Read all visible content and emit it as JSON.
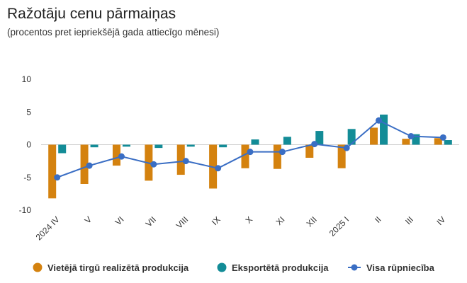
{
  "chart_data": {
    "type": "bar",
    "title": "Ražotāju cenu pārmaiņas",
    "subtitle": "(procentos pret iepriekšējā gada attiecīgo mēnesi)",
    "categories": [
      "2024 IV",
      "V",
      "VI",
      "VII",
      "VIII",
      "IX",
      "X",
      "XI",
      "XII",
      "2025 I",
      "II",
      "III",
      "IV"
    ],
    "ylim": [
      -10,
      10
    ],
    "yticks": [
      -10,
      -5,
      0,
      5,
      10
    ],
    "grid": false,
    "legend_position": "bottom",
    "series": [
      {
        "name": "Vietējā tirgū realizētā produkcija",
        "type": "bar",
        "color": "#d4820f",
        "values": [
          -8.2,
          -6.0,
          -3.2,
          -5.5,
          -4.6,
          -6.7,
          -3.6,
          -3.7,
          -2.0,
          -3.6,
          2.6,
          0.9,
          1.0
        ]
      },
      {
        "name": "Eksportētā produkcija",
        "type": "bar",
        "color": "#138c97",
        "values": [
          -1.3,
          -0.4,
          -0.3,
          -0.5,
          -0.3,
          -0.4,
          0.8,
          1.2,
          2.1,
          2.4,
          4.6,
          1.6,
          0.7
        ]
      },
      {
        "name": "Visa rūpniecība",
        "type": "line",
        "color": "#3a6ec4",
        "values": [
          -5.0,
          -3.2,
          -1.8,
          -3.0,
          -2.5,
          -3.6,
          -1.1,
          -1.1,
          0.1,
          -0.5,
          3.7,
          1.3,
          1.1
        ]
      }
    ]
  }
}
